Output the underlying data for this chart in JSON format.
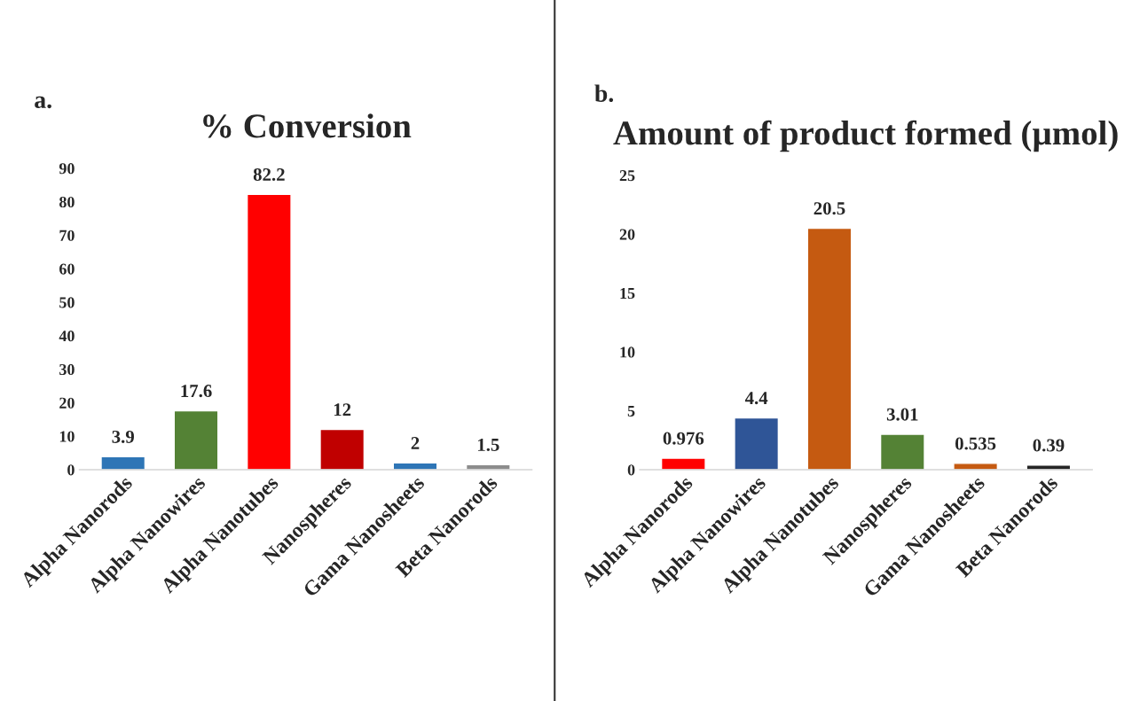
{
  "chart_data": [
    {
      "type": "bar",
      "title": "% Conversion",
      "annotations": [
        "a."
      ],
      "categories": [
        "Alpha Nanorods",
        "Alpha Nanowires",
        "Alpha Nanotubes",
        "Nanospheres",
        "Gama Nanosheets",
        "Beta Nanorods"
      ],
      "values": [
        3.9,
        17.6,
        82.2,
        12,
        2,
        1.5
      ],
      "colors": [
        "#2e75b6",
        "#548235",
        "#ff0000",
        "#c00000",
        "#2e75b6",
        "#8c8c8c"
      ],
      "ylim": [
        0,
        90
      ],
      "yticks": [
        0,
        10,
        20,
        30,
        40,
        50,
        60,
        70,
        80,
        90
      ],
      "grid": false,
      "data_labels": true
    },
    {
      "type": "bar",
      "title": "Amount of product formed (µmol)",
      "annotations": [
        "b."
      ],
      "categories": [
        "Alpha Nanorods",
        "Alpha Nanowires",
        "Alpha Nanotubes",
        "Nanospheres",
        "Gama Nanosheets",
        "Beta Nanorods"
      ],
      "values": [
        0.976,
        4.4,
        20.5,
        3.01,
        0.535,
        0.39
      ],
      "colors": [
        "#ff0000",
        "#2f5597",
        "#c55a11",
        "#548235",
        "#c55a11",
        "#262626"
      ],
      "ylim": [
        0,
        25
      ],
      "yticks": [
        0,
        5,
        10,
        15,
        20,
        25
      ],
      "grid": false,
      "data_labels": true
    }
  ]
}
